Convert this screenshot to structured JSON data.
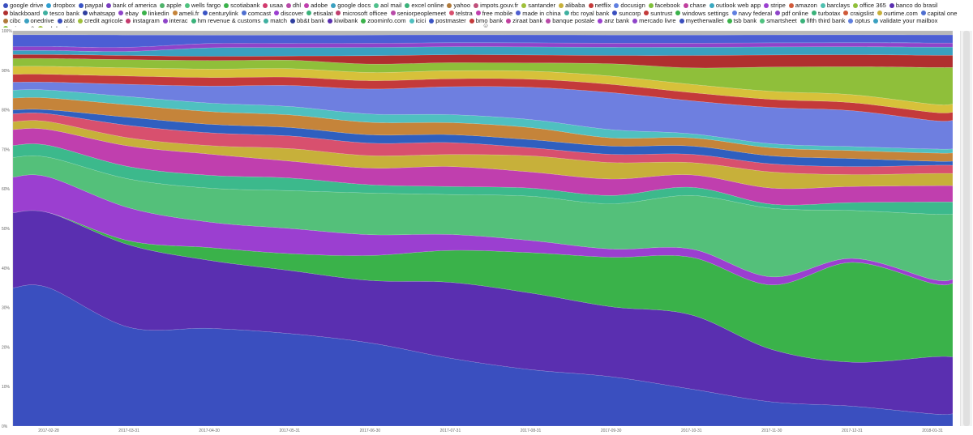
{
  "chart_data": {
    "type": "area",
    "stacked": true,
    "normalized": true,
    "streamgraph_style": "smoothed, 100% stacked",
    "x": [
      "2017-02-28",
      "2017-03-31",
      "2017-04-30",
      "2017-05-31",
      "2017-06-30",
      "2017-07-31",
      "2017-08-31",
      "2017-09-30",
      "2017-10-31",
      "2017-11-30",
      "2017-12-31",
      "2018-01-31"
    ],
    "y_ticks": [
      "0%",
      "10%",
      "20%",
      "30%",
      "40%",
      "50%",
      "60%",
      "70%",
      "80%",
      "90%",
      "100%"
    ],
    "ylim": [
      0,
      100
    ],
    "grid": false,
    "legend_position": "top",
    "collapse_glyph": "☺",
    "series": [
      {
        "name": "google drive",
        "color": "#3a4fbf",
        "values": [
          35,
          24,
          23,
          22,
          20,
          17,
          14,
          12,
          9,
          6,
          5,
          3
        ]
      },
      {
        "name": "dropbox",
        "color": "#5a2fb0",
        "values": [
          19,
          20,
          16,
          15,
          15,
          19,
          19,
          17,
          18,
          13,
          11,
          14
        ]
      },
      {
        "name": "paypal",
        "color": "#3ab24a",
        "values": [
          0,
          1,
          3,
          4,
          6,
          8,
          10,
          12,
          14,
          16,
          25,
          18
        ]
      },
      {
        "name": "bank of america",
        "color": "#9b3fd0",
        "values": [
          9,
          8,
          6,
          6,
          5,
          4,
          3,
          2,
          2,
          2,
          1,
          1
        ]
      },
      {
        "name": "apple",
        "color": "#54c07a",
        "values": [
          5,
          7,
          8,
          9,
          10,
          10,
          11,
          11,
          13,
          17,
          12,
          16
        ]
      },
      {
        "name": "wells fargo",
        "color": "#3cb98c",
        "values": [
          3,
          3,
          3,
          3,
          2,
          2,
          2,
          2,
          2,
          1,
          2,
          3
        ]
      },
      {
        "name": "scotiabank",
        "color": "#c03fae",
        "values": [
          4,
          5,
          5,
          4,
          4,
          5,
          4,
          4,
          3,
          4,
          4,
          4
        ]
      },
      {
        "name": "usaa",
        "color": "#c7b03a",
        "values": [
          2,
          2,
          2,
          3,
          3,
          3,
          4,
          4,
          3,
          4,
          3,
          3
        ]
      },
      {
        "name": "dhl",
        "color": "#d8506e",
        "values": [
          2,
          3,
          3,
          3,
          3,
          3,
          2,
          2,
          2,
          2,
          2,
          2
        ]
      },
      {
        "name": "adobe",
        "color": "#2f5fbf",
        "values": [
          1,
          2,
          2,
          2,
          2,
          2,
          2,
          2,
          2,
          2,
          2,
          1
        ]
      },
      {
        "name": "google docs",
        "color": "#c5843a",
        "values": [
          3,
          3,
          3,
          3,
          3,
          3,
          3,
          2,
          2,
          2,
          2,
          2
        ]
      },
      {
        "name": "aol mail",
        "color": "#4fc0c0",
        "values": [
          2,
          2,
          2,
          2,
          2,
          2,
          2,
          2,
          1,
          1,
          1,
          1
        ]
      },
      {
        "name": "excel online",
        "color": "#6e7fe0",
        "values": [
          2,
          3,
          4,
          5,
          6,
          7,
          8,
          9,
          8,
          9,
          9,
          7
        ]
      },
      {
        "name": "yahoo",
        "color": "#c43a3a",
        "values": [
          2,
          2,
          2,
          2,
          2,
          2,
          2,
          2,
          2,
          2,
          2,
          2
        ]
      },
      {
        "name": "impots.gouv.fr",
        "color": "#d7c13a",
        "values": [
          2,
          2,
          2,
          2,
          2,
          2,
          2,
          2,
          2,
          2,
          2,
          2
        ]
      },
      {
        "name": "santander",
        "color": "#8fbf3a",
        "values": [
          2,
          2,
          2,
          2,
          2,
          2,
          2,
          3,
          4,
          6,
          7,
          9
        ]
      },
      {
        "name": "alibaba",
        "color": "#b02f2f",
        "values": [
          1,
          1,
          1,
          1,
          2,
          2,
          2,
          2,
          3,
          3,
          3,
          3
        ]
      },
      {
        "name": "netflix",
        "color": "#3aa0c0",
        "values": [
          1,
          1,
          2,
          2,
          2,
          2,
          2,
          2,
          2,
          2,
          2,
          2
        ]
      },
      {
        "name": "docusign",
        "color": "#8e44c9",
        "values": [
          1,
          1,
          1,
          1,
          1,
          1,
          1,
          1,
          1,
          1,
          1,
          1
        ]
      },
      {
        "name": "facebook",
        "color": "#4c5ed4",
        "values": [
          3,
          3,
          2,
          2,
          2,
          2,
          2,
          2,
          2,
          2,
          2,
          2
        ]
      },
      {
        "name": "chase",
        "color": "#b8b8b8",
        "values": [
          1,
          1,
          1,
          1,
          1,
          1,
          1,
          1,
          1,
          1,
          1,
          1
        ]
      }
    ]
  },
  "legend": {
    "items": [
      {
        "name": "google drive",
        "color": "#3a4fbf"
      },
      {
        "name": "dropbox",
        "color": "#2f9fd0"
      },
      {
        "name": "paypal",
        "color": "#3a54c4"
      },
      {
        "name": "bank of america",
        "color": "#7a3fc0"
      },
      {
        "name": "apple",
        "color": "#4fb36a"
      },
      {
        "name": "wells fargo",
        "color": "#4fc27f"
      },
      {
        "name": "scotiabank",
        "color": "#3ab24a"
      },
      {
        "name": "usaa",
        "color": "#d23a6e"
      },
      {
        "name": "dhl",
        "color": "#b84aa8"
      },
      {
        "name": "adobe",
        "color": "#c03fae"
      },
      {
        "name": "google docs",
        "color": "#3aa0c0"
      },
      {
        "name": "aol mail",
        "color": "#4fc08c"
      },
      {
        "name": "excel online",
        "color": "#3ab27a"
      },
      {
        "name": "yahoo",
        "color": "#b07a3a"
      },
      {
        "name": "impots.gouv.fr",
        "color": "#c04f7a"
      },
      {
        "name": "santander",
        "color": "#9fc03a"
      },
      {
        "name": "alibaba",
        "color": "#c7b03a"
      },
      {
        "name": "netflix",
        "color": "#c43a3a"
      },
      {
        "name": "docusign",
        "color": "#5f7fe0"
      },
      {
        "name": "facebook",
        "color": "#7fbf3a"
      },
      {
        "name": "chase",
        "color": "#c03f9e"
      },
      {
        "name": "outlook web app",
        "color": "#3aa8c0"
      },
      {
        "name": "stripe",
        "color": "#9b3fd0"
      },
      {
        "name": "amazon",
        "color": "#d05a3a"
      },
      {
        "name": "barclays",
        "color": "#4fc0b0"
      },
      {
        "name": "office 365",
        "color": "#8fbf3a"
      },
      {
        "name": "banco do brasil",
        "color": "#5a2fb0"
      },
      {
        "name": "blackboard",
        "color": "#b02f2f"
      },
      {
        "name": "tesco bank",
        "color": "#3fb0a0"
      },
      {
        "name": "whatsapp",
        "color": "#2f3f9f"
      },
      {
        "name": "ebay",
        "color": "#8e44c9"
      },
      {
        "name": "linkedin",
        "color": "#3ab24a"
      },
      {
        "name": "ameli.fr",
        "color": "#c5843a"
      },
      {
        "name": "centurylink",
        "color": "#3a54c4"
      },
      {
        "name": "comcast",
        "color": "#4f6fd0"
      },
      {
        "name": "discover",
        "color": "#9b3fd0"
      },
      {
        "name": "etisalat",
        "color": "#3ab27a"
      },
      {
        "name": "microsoft officee",
        "color": "#c03f6e"
      },
      {
        "name": "seniorpeoplemeet",
        "color": "#b84aa8"
      },
      {
        "name": "telstra",
        "color": "#d8506e"
      },
      {
        "name": "free mobile",
        "color": "#c03fae"
      },
      {
        "name": "made in china",
        "color": "#4f5fd0"
      },
      {
        "name": "rbc royal bank",
        "color": "#3fb0a0"
      },
      {
        "name": "suncorp",
        "color": "#3a4fbf"
      },
      {
        "name": "suntrust",
        "color": "#c43a3a"
      },
      {
        "name": "windows settings",
        "color": "#3ab24a"
      },
      {
        "name": "navy federal",
        "color": "#5f7fe0"
      },
      {
        "name": "pdf online",
        "color": "#8e44c9"
      },
      {
        "name": "turbotax",
        "color": "#3ab27a"
      },
      {
        "name": "craigslist",
        "color": "#d05a3a"
      },
      {
        "name": "ourtime.com",
        "color": "#c7b03a"
      },
      {
        "name": "capital one",
        "color": "#4f6fd0"
      },
      {
        "name": "cibc",
        "color": "#b07a3a"
      },
      {
        "name": "onedrive",
        "color": "#3aa0c0"
      },
      {
        "name": "at&t",
        "color": "#3a4fbf"
      },
      {
        "name": "credit agricole",
        "color": "#9fc03a"
      },
      {
        "name": "instagram",
        "color": "#c43a6e"
      },
      {
        "name": "interac",
        "color": "#8e44c9"
      },
      {
        "name": "hm revenue & customs",
        "color": "#3ab27a"
      },
      {
        "name": "match",
        "color": "#3fb0a0"
      },
      {
        "name": "bb&t bank",
        "color": "#2f3f9f"
      },
      {
        "name": "kiwibank",
        "color": "#5a2fb0"
      },
      {
        "name": "zoominfo.com",
        "color": "#3ab24a"
      },
      {
        "name": "icici",
        "color": "#4fc0c0"
      },
      {
        "name": "postmaster",
        "color": "#3a54c4"
      },
      {
        "name": "bmo bank",
        "color": "#c43a3a"
      },
      {
        "name": "ziraat bank",
        "color": "#c03f9e"
      },
      {
        "name": "banque postale",
        "color": "#b84aa8"
      },
      {
        "name": "anz bank",
        "color": "#9b3fd0"
      },
      {
        "name": "mercado livre",
        "color": "#8e44c9"
      },
      {
        "name": "myetherwallet",
        "color": "#3a4fbf"
      },
      {
        "name": "tsb bank",
        "color": "#3ab24a"
      },
      {
        "name": "smartsheet",
        "color": "#4fc27f"
      },
      {
        "name": "fifth third bank",
        "color": "#3ab27a"
      },
      {
        "name": "optus",
        "color": "#5f7fe0"
      },
      {
        "name": "validate your mailbox",
        "color": "#3aa0c0"
      },
      {
        "name": "microsoft",
        "color": "#7fbf3a"
      },
      {
        "name": "asb bank",
        "color": "#9fc03a"
      }
    ]
  }
}
